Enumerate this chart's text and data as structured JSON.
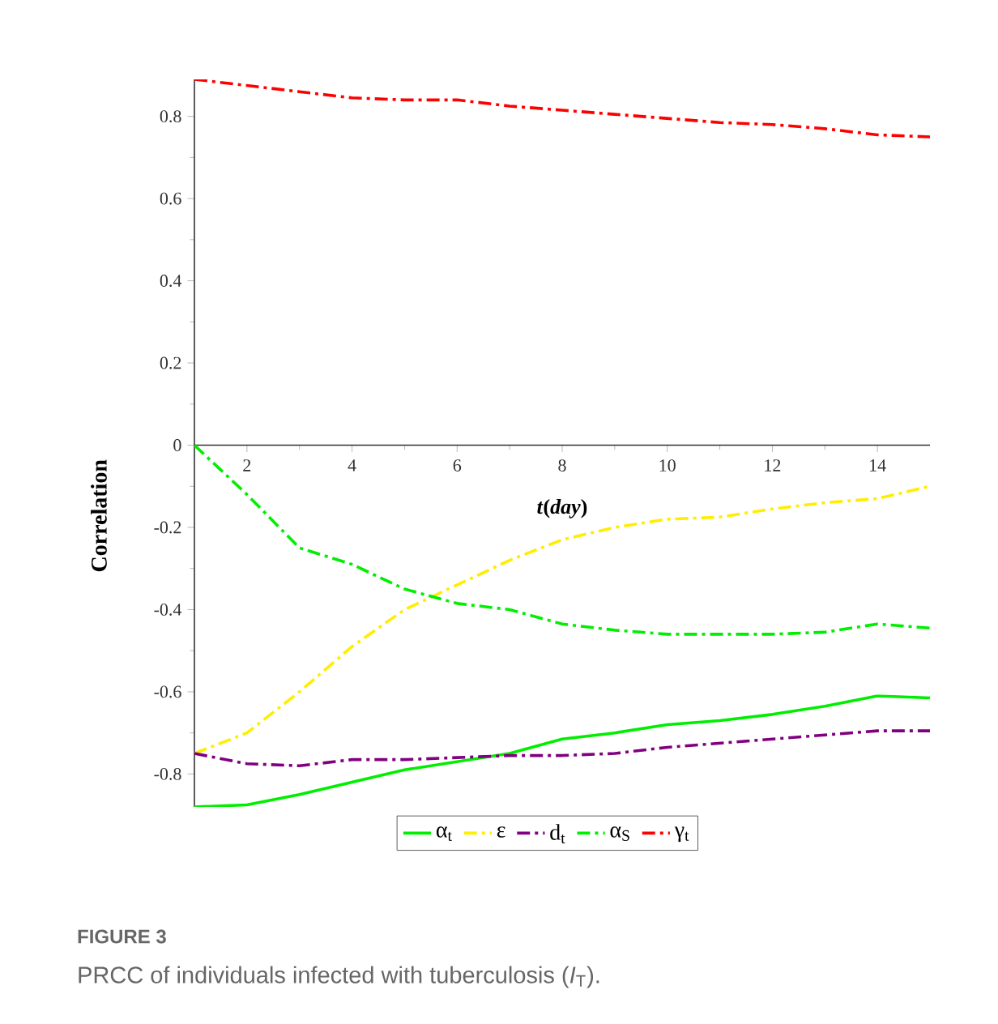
{
  "chart_data": {
    "type": "line",
    "xlabel": "*t*(*day*)",
    "ylabel": "Correlation",
    "annotations": [
      "FIGURE 3",
      "PRCC of individuals infected with tuberculosis (*I*$_{T}$)."
    ],
    "x": [
      1,
      2,
      3,
      4,
      5,
      6,
      7,
      8,
      9,
      10,
      11,
      12,
      13,
      14,
      15
    ],
    "series": [
      {
        "name": "α$_{t}$",
        "color": "#00ee00",
        "line_style": "solid",
        "values": [
          -0.88,
          -0.875,
          -0.85,
          -0.82,
          -0.79,
          -0.77,
          -0.75,
          -0.715,
          -0.7,
          -0.68,
          -0.67,
          -0.655,
          -0.635,
          -0.61,
          -0.615
        ]
      },
      {
        "name": "ε",
        "color": "#ffee00",
        "line_style": "dashdot",
        "values": [
          -0.75,
          -0.7,
          -0.6,
          -0.49,
          -0.4,
          -0.34,
          -0.28,
          -0.23,
          -0.2,
          -0.18,
          -0.175,
          -0.155,
          -0.14,
          -0.13,
          -0.1
        ]
      },
      {
        "name": "d$_{t}$",
        "color": "#800080",
        "line_style": "dashdot",
        "values": [
          -0.75,
          -0.775,
          -0.78,
          -0.765,
          -0.765,
          -0.76,
          -0.755,
          -0.755,
          -0.75,
          -0.735,
          -0.725,
          -0.715,
          -0.705,
          -0.695,
          -0.695
        ]
      },
      {
        "name": "α$_{S}$",
        "color": "#00ee00",
        "line_style": "dashdot",
        "values": [
          0,
          -0.12,
          -0.25,
          -0.29,
          -0.35,
          -0.385,
          -0.4,
          -0.435,
          -0.45,
          -0.46,
          -0.46,
          -0.46,
          -0.455,
          -0.435,
          -0.445
        ]
      },
      {
        "name": "γ$_{t}$",
        "color": "#ff0000",
        "line_style": "dashdot",
        "values": [
          0.89,
          0.875,
          0.86,
          0.845,
          0.84,
          0.84,
          0.825,
          0.815,
          0.805,
          0.795,
          0.785,
          0.78,
          0.77,
          0.755,
          0.75
        ]
      }
    ],
    "xlim": [
      1,
      15
    ],
    "ylim": [
      -0.88,
      0.89
    ],
    "xticks": [
      2,
      4,
      6,
      8,
      10,
      12,
      14
    ],
    "yticks": [
      -0.8,
      -0.6,
      -0.4,
      -0.2,
      0,
      0.2,
      0.4,
      0.6,
      0.8
    ],
    "grid": false,
    "legend": "bottom",
    "marker": "none"
  }
}
